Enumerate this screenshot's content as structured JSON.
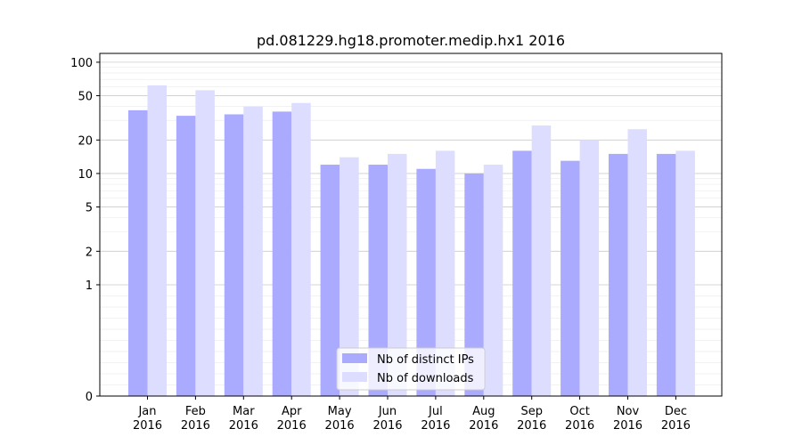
{
  "chart_data": {
    "type": "bar",
    "title": "pd.081229.hg18.promoter.medip.hx1 2016",
    "xlabel": "",
    "ylabel": "",
    "y_scale": "symlog",
    "ylim": [
      0,
      120
    ],
    "y_ticks": [
      0,
      1,
      2,
      5,
      10,
      20,
      50,
      100
    ],
    "grid": "horizontal",
    "legend_position": "lower-center",
    "categories": [
      [
        "Jan",
        "2016"
      ],
      [
        "Feb",
        "2016"
      ],
      [
        "Mar",
        "2016"
      ],
      [
        "Apr",
        "2016"
      ],
      [
        "May",
        "2016"
      ],
      [
        "Jun",
        "2016"
      ],
      [
        "Jul",
        "2016"
      ],
      [
        "Aug",
        "2016"
      ],
      [
        "Sep",
        "2016"
      ],
      [
        "Oct",
        "2016"
      ],
      [
        "Nov",
        "2016"
      ],
      [
        "Dec",
        "2016"
      ]
    ],
    "series": [
      {
        "name": "Nb of distinct IPs",
        "color": "#aaaaff",
        "values": [
          37,
          33,
          34,
          36,
          12,
          12,
          11,
          10,
          16,
          13,
          15,
          15
        ]
      },
      {
        "name": "Nb of downloads",
        "color": "#ddddff",
        "values": [
          62,
          56,
          40,
          43,
          14,
          15,
          16,
          12,
          27,
          20,
          25,
          16
        ]
      }
    ]
  }
}
